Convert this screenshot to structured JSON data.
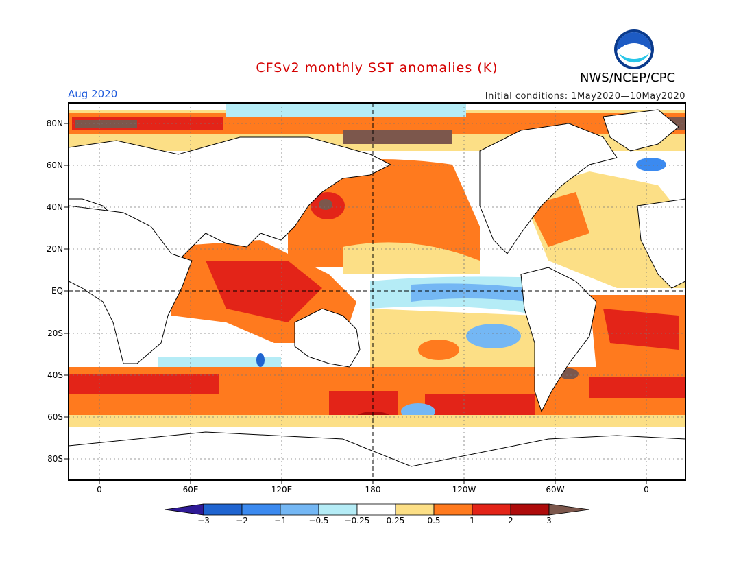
{
  "header": {
    "title": "CFSv2 monthly SST anomalies (K)",
    "agency": "NWS/NCEP/CPC",
    "valid_month": "Aug 2020",
    "initial_conditions": "Initial conditions: 1May2020—10May2020",
    "logo_text": "NOAA"
  },
  "map": {
    "lat_labels": [
      "80N",
      "60N",
      "40N",
      "20N",
      "EQ",
      "20S",
      "40S",
      "60S",
      "80S"
    ],
    "lon_labels": [
      "0",
      "60E",
      "120E",
      "180",
      "120W",
      "60W",
      "0"
    ],
    "land_color": "#ffffff",
    "coast_color": "#000000"
  },
  "colorbar": {
    "labels": [
      "−3",
      "−2",
      "−1",
      "−0.5",
      "−0.25",
      "0.25",
      "0.5",
      "1",
      "2",
      "3"
    ],
    "colors": [
      "#2f1a96",
      "#1f64d0",
      "#3b8af0",
      "#74b7f4",
      "#b5ecf6",
      "#ffffff",
      "#fcdf86",
      "#ff7a1e",
      "#e32418",
      "#ae0b0b",
      "#7c574c"
    ]
  }
}
